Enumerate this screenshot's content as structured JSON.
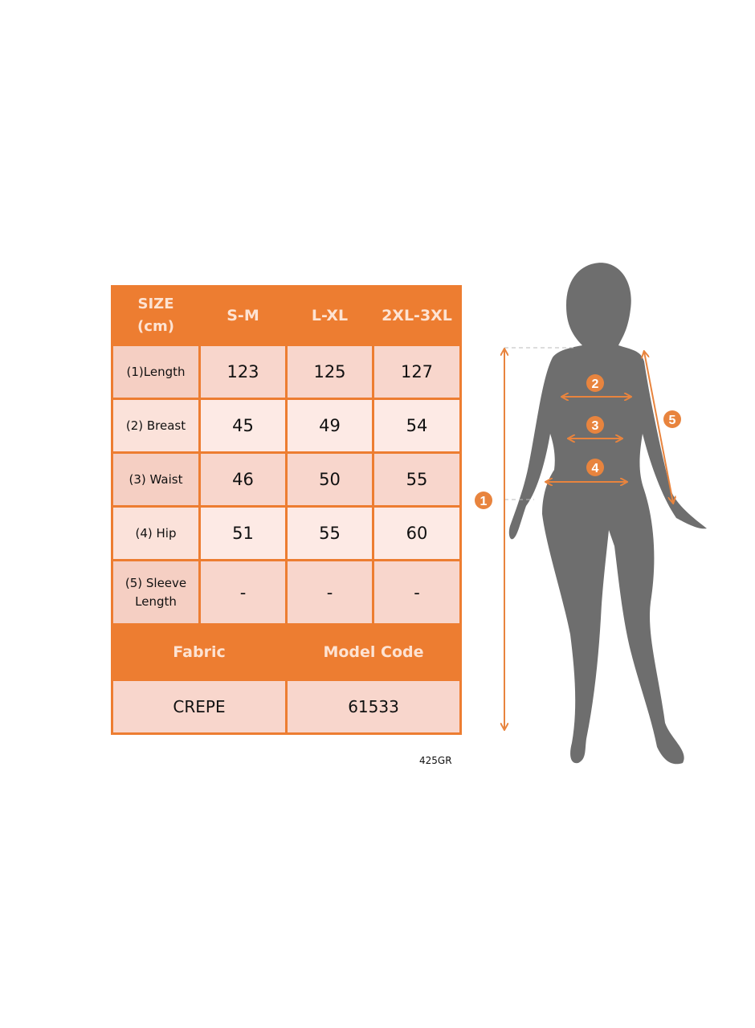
{
  "table": {
    "header": {
      "size_label_line1": "SIZE",
      "size_label_line2": "(cm)",
      "sizes": [
        "S-M",
        "L-XL",
        "2XL-3XL"
      ]
    },
    "rows": [
      {
        "label": "(1)Length",
        "values": [
          "123",
          "125",
          "127"
        ]
      },
      {
        "label": "(2) Breast",
        "values": [
          "45",
          "49",
          "54"
        ]
      },
      {
        "label": "(3) Waist",
        "values": [
          "46",
          "50",
          "55"
        ]
      },
      {
        "label": "(4) Hip",
        "values": [
          "51",
          "55",
          "60"
        ]
      },
      {
        "label_line1": "(5) Sleeve",
        "label_line2": "Length",
        "values": [
          "-",
          "-",
          "-"
        ]
      }
    ],
    "fabric_label": "Fabric",
    "model_code_label": "Model Code",
    "fabric_value": "CREPE",
    "model_code_value": "61533"
  },
  "product_code": "425GR",
  "figure": {
    "markers": [
      "1",
      "2",
      "3",
      "4",
      "5"
    ]
  },
  "colors": {
    "accent": "#ed7d31",
    "row_dark": "#f8d6cc",
    "row_light": "#fdeae5",
    "silhouette": "#6e6e6e"
  }
}
